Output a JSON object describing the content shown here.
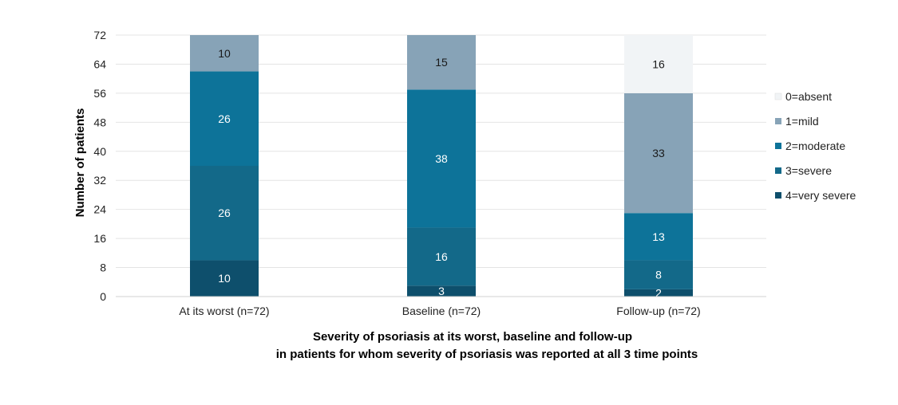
{
  "chart_data": {
    "type": "bar",
    "stacked": true,
    "title_lines": [
      "Severity of psoriasis at its worst, baseline and follow-up",
      "in patients for whom severity of psoriasis was reported at all 3 time points"
    ],
    "xlabel": "",
    "ylabel": "Number of patients",
    "ylim": [
      0,
      72
    ],
    "yticks": [
      "0",
      "8",
      "16",
      "24",
      "32",
      "40",
      "48",
      "56",
      "64",
      "72"
    ],
    "ytick_values": [
      0,
      8,
      16,
      24,
      32,
      40,
      48,
      56,
      64,
      72
    ],
    "grid": true,
    "legend_position": "right",
    "categories": [
      "At its worst (n=72)",
      "Baseline (n=72)",
      "Follow-up (n=72)"
    ],
    "series": [
      {
        "name": "4=very severe",
        "values": [
          10,
          3,
          2
        ],
        "labels": [
          "10",
          "3",
          "2"
        ],
        "color": "#0e4f6c",
        "label_color": "#ffffff"
      },
      {
        "name": "3=severe",
        "values": [
          26,
          16,
          8
        ],
        "labels": [
          "26",
          "16",
          "8"
        ],
        "color": "#136989",
        "label_color": "#ffffff"
      },
      {
        "name": "2=moderate",
        "values": [
          26,
          38,
          13
        ],
        "labels": [
          "26",
          "38",
          "13"
        ],
        "color": "#0d7399",
        "label_color": "#ffffff"
      },
      {
        "name": "1=mild",
        "values": [
          10,
          15,
          33
        ],
        "labels": [
          "10",
          "15",
          "33"
        ],
        "color": "#87a3b7",
        "label_color": "#1a1a1a"
      },
      {
        "name": "0=absent",
        "values": [
          0,
          0,
          16
        ],
        "labels": [
          "",
          "",
          "16"
        ],
        "color": "#f1f4f6",
        "label_color": "#1a1a1a"
      }
    ],
    "legend_order": [
      "0=absent",
      "1=mild",
      "2=moderate",
      "3=severe",
      "4=very severe"
    ]
  }
}
